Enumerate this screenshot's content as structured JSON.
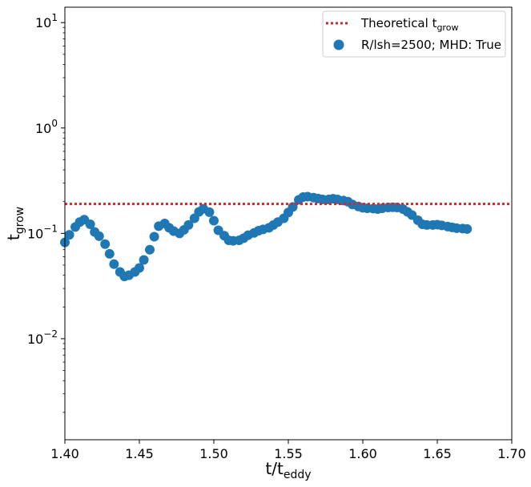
{
  "chart_data": {
    "type": "scatter",
    "xlim": [
      1.4,
      1.7
    ],
    "ylim": [
      0.0011,
      14
    ],
    "yscale": "log",
    "x_ticks": [
      1.4,
      1.45,
      1.5,
      1.55,
      1.6,
      1.65,
      1.7
    ],
    "x_tick_labels": [
      "1.40",
      "1.45",
      "1.50",
      "1.55",
      "1.60",
      "1.65",
      "1.70"
    ],
    "y_ticks": [
      {
        "value": 0.01,
        "base": "10",
        "exp": "−2"
      },
      {
        "value": 0.1,
        "base": "10",
        "exp": "−1"
      },
      {
        "value": 1,
        "base": "10",
        "exp": "0"
      },
      {
        "value": 10,
        "base": "10",
        "exp": "1"
      }
    ],
    "xlabel": {
      "main": "t/t",
      "sub": "eddy"
    },
    "ylabel": {
      "main": "t",
      "sub": "grow"
    },
    "legend_placement": "top-right",
    "legend": {
      "line_main": "Theoretical t",
      "line_sub": "grow",
      "scatter": "R/lsh=2500; MHD: True"
    },
    "colors": {
      "scatter": "#1f77b4",
      "line": "#d62728"
    },
    "theoretical_t_grow": 0.19,
    "series": [
      {
        "name": "R/lsh=2500; MHD: True",
        "x": [
          1.4,
          1.403,
          1.407,
          1.41,
          1.413,
          1.417,
          1.42,
          1.423,
          1.427,
          1.43,
          1.433,
          1.437,
          1.44,
          1.443,
          1.447,
          1.45,
          1.453,
          1.457,
          1.46,
          1.463,
          1.467,
          1.47,
          1.473,
          1.477,
          1.48,
          1.483,
          1.487,
          1.49,
          1.493,
          1.497,
          1.5,
          1.503,
          1.507,
          1.51,
          1.513,
          1.517,
          1.52,
          1.523,
          1.527,
          1.53,
          1.533,
          1.537,
          1.54,
          1.543,
          1.547,
          1.55,
          1.553,
          1.557,
          1.56,
          1.563,
          1.567,
          1.57,
          1.573,
          1.577,
          1.58,
          1.583,
          1.587,
          1.59,
          1.593,
          1.597,
          1.6,
          1.603,
          1.607,
          1.61,
          1.613,
          1.617,
          1.62,
          1.623,
          1.627,
          1.63,
          1.633,
          1.637,
          1.64,
          1.643,
          1.647,
          1.65,
          1.653,
          1.657,
          1.66,
          1.663,
          1.667,
          1.67
        ],
        "y": [
          0.082,
          0.097,
          0.115,
          0.128,
          0.135,
          0.122,
          0.103,
          0.094,
          0.079,
          0.064,
          0.051,
          0.043,
          0.039,
          0.04,
          0.043,
          0.047,
          0.056,
          0.07,
          0.093,
          0.117,
          0.124,
          0.113,
          0.105,
          0.1,
          0.108,
          0.12,
          0.139,
          0.16,
          0.171,
          0.159,
          0.132,
          0.107,
          0.095,
          0.086,
          0.085,
          0.086,
          0.09,
          0.096,
          0.101,
          0.106,
          0.109,
          0.113,
          0.12,
          0.128,
          0.139,
          0.158,
          0.178,
          0.208,
          0.221,
          0.223,
          0.218,
          0.214,
          0.21,
          0.21,
          0.213,
          0.21,
          0.205,
          0.2,
          0.188,
          0.18,
          0.175,
          0.173,
          0.172,
          0.17,
          0.173,
          0.176,
          0.177,
          0.176,
          0.17,
          0.16,
          0.149,
          0.133,
          0.122,
          0.12,
          0.12,
          0.121,
          0.119,
          0.116,
          0.114,
          0.112,
          0.111,
          0.11
        ]
      }
    ]
  }
}
